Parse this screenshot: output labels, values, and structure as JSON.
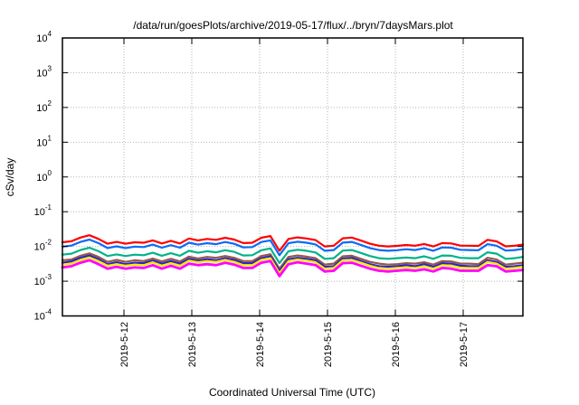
{
  "title": "/data/run/goesPlots/archive/2019-05-17/flux/../bryn/7daysMars.plot",
  "axes": {
    "xlabel": "Coordinated Universal Time (UTC)",
    "ylabel": "cSv/day"
  },
  "chart_data": {
    "type": "line",
    "title": "/data/run/goesPlots/archive/2019-05-17/flux/../bryn/7daysMars.plot",
    "xlabel": "Coordinated Universal Time (UTC)",
    "ylabel": "cSv/day",
    "y_scale": "log10",
    "ylim": [
      0.0001,
      10000
    ],
    "ytick_exponents": [
      4,
      3,
      2,
      1,
      0,
      -1,
      -2,
      -3,
      -4
    ],
    "grid": true,
    "legend_position": "none",
    "x_unit": "hours since 2019-05-11 00:00 UTC",
    "xlim_hours": [
      2.2,
      165.1
    ],
    "xticks": [
      {
        "hour": 24,
        "label": "2019-5-12"
      },
      {
        "hour": 48,
        "label": "2019-5-13"
      },
      {
        "hour": 72,
        "label": "2019-5-14"
      },
      {
        "hour": 96,
        "label": "2019-5-15"
      },
      {
        "hour": 120,
        "label": "2019-5-16"
      },
      {
        "hour": 144,
        "label": "2019-5-17"
      }
    ],
    "x_hours": [
      2.2,
      5.4,
      8.6,
      11.8,
      15.0,
      18.2,
      21.4,
      24.6,
      27.8,
      31.0,
      34.2,
      37.4,
      40.6,
      43.8,
      47.0,
      50.2,
      53.4,
      56.6,
      59.8,
      63.0,
      66.2,
      69.4,
      72.6,
      75.8,
      79.0,
      82.2,
      85.4,
      88.6,
      91.8,
      95.0,
      98.2,
      101.4,
      104.6,
      107.8,
      111.0,
      114.2,
      117.4,
      120.6,
      123.8,
      127.0,
      130.2,
      133.4,
      136.6,
      139.8,
      143.0,
      146.2,
      149.4,
      152.6,
      155.8,
      159.0,
      162.2,
      165.1
    ],
    "series": [
      {
        "name": "red",
        "color": "#ff0000",
        "values": [
          0.0132,
          0.0141,
          0.018,
          0.021,
          0.0165,
          0.012,
          0.0135,
          0.012,
          0.0132,
          0.0128,
          0.015,
          0.0122,
          0.0145,
          0.0122,
          0.017,
          0.015,
          0.0165,
          0.0155,
          0.0178,
          0.0158,
          0.0125,
          0.0128,
          0.0178,
          0.02,
          0.0075,
          0.0165,
          0.0182,
          0.017,
          0.0152,
          0.01,
          0.0105,
          0.0172,
          0.018,
          0.0148,
          0.012,
          0.0105,
          0.01,
          0.0104,
          0.011,
          0.0105,
          0.0118,
          0.01,
          0.0125,
          0.0122,
          0.0106,
          0.0105,
          0.0104,
          0.0155,
          0.014,
          0.0101,
          0.0105,
          0.0113
        ]
      },
      {
        "name": "blue",
        "color": "#0a6cf5",
        "values": [
          0.0099,
          0.0106,
          0.0135,
          0.0158,
          0.0124,
          0.009,
          0.0101,
          0.009,
          0.0099,
          0.0096,
          0.0113,
          0.0092,
          0.0109,
          0.0092,
          0.0128,
          0.0113,
          0.0124,
          0.0116,
          0.0134,
          0.0119,
          0.0094,
          0.0096,
          0.0134,
          0.015,
          0.0056,
          0.0124,
          0.0137,
          0.0128,
          0.0114,
          0.0075,
          0.0079,
          0.0129,
          0.0135,
          0.0111,
          0.009,
          0.0079,
          0.0075,
          0.0078,
          0.0083,
          0.0079,
          0.0089,
          0.0075,
          0.0094,
          0.0092,
          0.008,
          0.0079,
          0.0078,
          0.0116,
          0.0105,
          0.0076,
          0.0079,
          0.0085
        ]
      },
      {
        "name": "teal",
        "color": "#00b389",
        "values": [
          0.0058,
          0.0062,
          0.0079,
          0.0092,
          0.0073,
          0.0053,
          0.0059,
          0.0053,
          0.0058,
          0.0056,
          0.0066,
          0.0054,
          0.0064,
          0.0054,
          0.0075,
          0.0066,
          0.0073,
          0.0068,
          0.0078,
          0.007,
          0.0055,
          0.0056,
          0.0078,
          0.0088,
          0.0033,
          0.0073,
          0.008,
          0.0075,
          0.0067,
          0.0044,
          0.0046,
          0.0076,
          0.0079,
          0.0065,
          0.0053,
          0.0046,
          0.0044,
          0.0046,
          0.0048,
          0.0046,
          0.0052,
          0.0044,
          0.0055,
          0.0054,
          0.0047,
          0.0046,
          0.0046,
          0.0068,
          0.0062,
          0.0044,
          0.0046,
          0.005
        ]
      },
      {
        "name": "brown",
        "color": "#97564a",
        "values": [
          0.004,
          0.0042,
          0.0054,
          0.0063,
          0.005,
          0.0036,
          0.0041,
          0.0036,
          0.004,
          0.0038,
          0.0045,
          0.0037,
          0.0044,
          0.0037,
          0.0051,
          0.0045,
          0.005,
          0.0047,
          0.0053,
          0.0047,
          0.0038,
          0.0038,
          0.0053,
          0.006,
          0.0023,
          0.005,
          0.0055,
          0.0051,
          0.0046,
          0.003,
          0.0032,
          0.0052,
          0.0054,
          0.0044,
          0.0036,
          0.0032,
          0.003,
          0.0031,
          0.0033,
          0.0032,
          0.0035,
          0.003,
          0.0038,
          0.0037,
          0.0032,
          0.0032,
          0.0031,
          0.0047,
          0.0042,
          0.003,
          0.0032,
          0.0034
        ]
      },
      {
        "name": "navy",
        "color": "#2727c3",
        "values": [
          0.0034,
          0.0037,
          0.0047,
          0.0055,
          0.0043,
          0.0031,
          0.0035,
          0.0031,
          0.0034,
          0.0033,
          0.0039,
          0.0032,
          0.0038,
          0.0032,
          0.0044,
          0.0039,
          0.0043,
          0.004,
          0.0046,
          0.0041,
          0.0033,
          0.0033,
          0.0046,
          0.0052,
          0.002,
          0.0043,
          0.0047,
          0.0044,
          0.004,
          0.0026,
          0.0027,
          0.0045,
          0.0047,
          0.0038,
          0.0031,
          0.0027,
          0.0026,
          0.0027,
          0.0029,
          0.0027,
          0.0031,
          0.0026,
          0.0033,
          0.0032,
          0.0028,
          0.0027,
          0.0027,
          0.004,
          0.0036,
          0.0026,
          0.0027,
          0.0029
        ]
      },
      {
        "name": "yellow",
        "color": "#ffe800",
        "values": [
          0.003,
          0.0032,
          0.0041,
          0.0048,
          0.0038,
          0.0028,
          0.0031,
          0.0028,
          0.003,
          0.0029,
          0.0035,
          0.0028,
          0.0033,
          0.0028,
          0.0039,
          0.0035,
          0.0038,
          0.0036,
          0.0041,
          0.0036,
          0.0029,
          0.0029,
          0.0041,
          0.0046,
          0.0017,
          0.0038,
          0.0042,
          0.0039,
          0.0035,
          0.0023,
          0.0024,
          0.004,
          0.0041,
          0.0034,
          0.0028,
          0.0024,
          0.0023,
          0.0024,
          0.0025,
          0.0024,
          0.0027,
          0.0023,
          0.0029,
          0.0028,
          0.0024,
          0.0024,
          0.0024,
          0.0036,
          0.0032,
          0.0023,
          0.0024,
          0.0026
        ]
      },
      {
        "name": "magenta",
        "color": "#ff00ff",
        "values": [
          0.0025,
          0.0027,
          0.0034,
          0.004,
          0.0031,
          0.0023,
          0.0026,
          0.0023,
          0.0025,
          0.0024,
          0.0029,
          0.0023,
          0.0028,
          0.0023,
          0.0032,
          0.0029,
          0.0031,
          0.0029,
          0.0034,
          0.003,
          0.0024,
          0.0024,
          0.0034,
          0.0038,
          0.0014,
          0.0031,
          0.0035,
          0.0032,
          0.0029,
          0.0019,
          0.002,
          0.0033,
          0.0034,
          0.0028,
          0.0023,
          0.002,
          0.0019,
          0.002,
          0.0021,
          0.002,
          0.0022,
          0.0019,
          0.0024,
          0.0023,
          0.002,
          0.002,
          0.002,
          0.0029,
          0.0027,
          0.0019,
          0.002,
          0.0021
        ]
      }
    ],
    "style": {
      "grid_color": "#b4b4b4",
      "border_color": "#000000"
    }
  }
}
